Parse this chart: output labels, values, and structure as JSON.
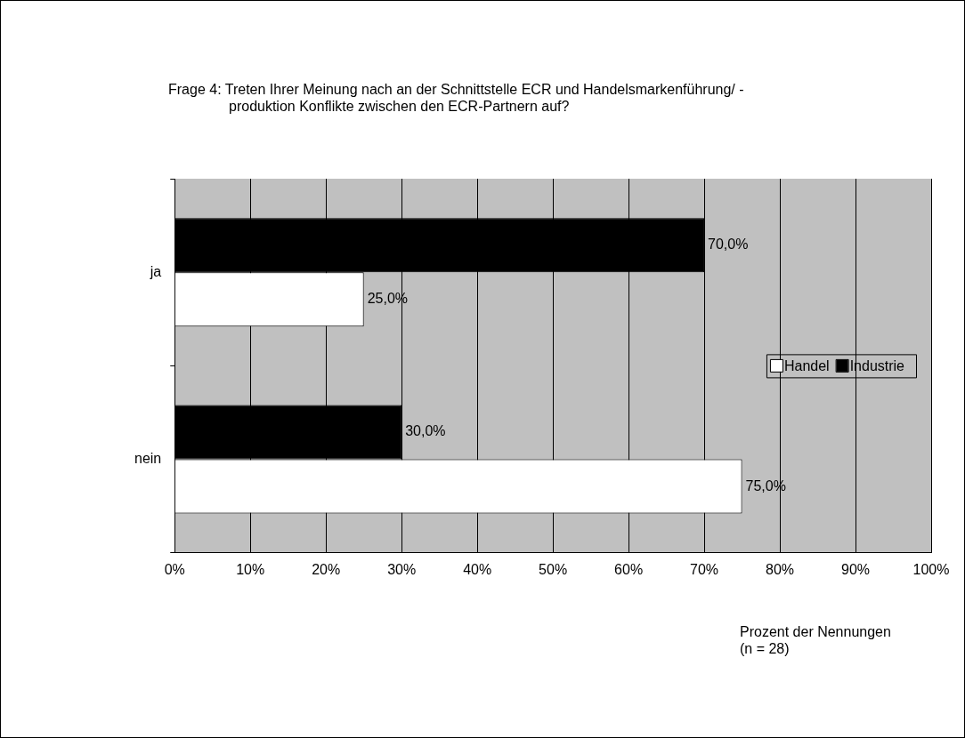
{
  "chart_data": {
    "type": "bar",
    "orientation": "horizontal",
    "title": "Frage 4: Treten Ihrer Meinung nach an der Schnittstelle ECR und Handelsmarkenführung/ -produktion Konflikte zwischen den ECR-Partnern auf?",
    "xlabel": "Prozent der Nennungen (n = 28)",
    "categories": [
      "ja",
      "nein"
    ],
    "series": [
      {
        "name": "Handel",
        "color": "#ffffff",
        "values": [
          25,
          75
        ],
        "value_labels": [
          "25,0%",
          "75,0%"
        ]
      },
      {
        "name": "Industrie",
        "color": "#000000",
        "values": [
          70,
          30
        ],
        "value_labels": [
          "70,0%",
          "30,0%"
        ]
      }
    ],
    "xlim": [
      0,
      100
    ],
    "xticks": [
      {
        "value": 0,
        "label": "0%"
      },
      {
        "value": 10,
        "label": "10%"
      },
      {
        "value": 20,
        "label": "20%"
      },
      {
        "value": 30,
        "label": "30%"
      },
      {
        "value": 40,
        "label": "40%"
      },
      {
        "value": 50,
        "label": "50%"
      },
      {
        "value": 60,
        "label": "60%"
      },
      {
        "value": 70,
        "label": "70%"
      },
      {
        "value": 80,
        "label": "80%"
      },
      {
        "value": 90,
        "label": "90%"
      },
      {
        "value": 100,
        "label": "100%"
      }
    ],
    "grid": "x",
    "legend": "right"
  }
}
